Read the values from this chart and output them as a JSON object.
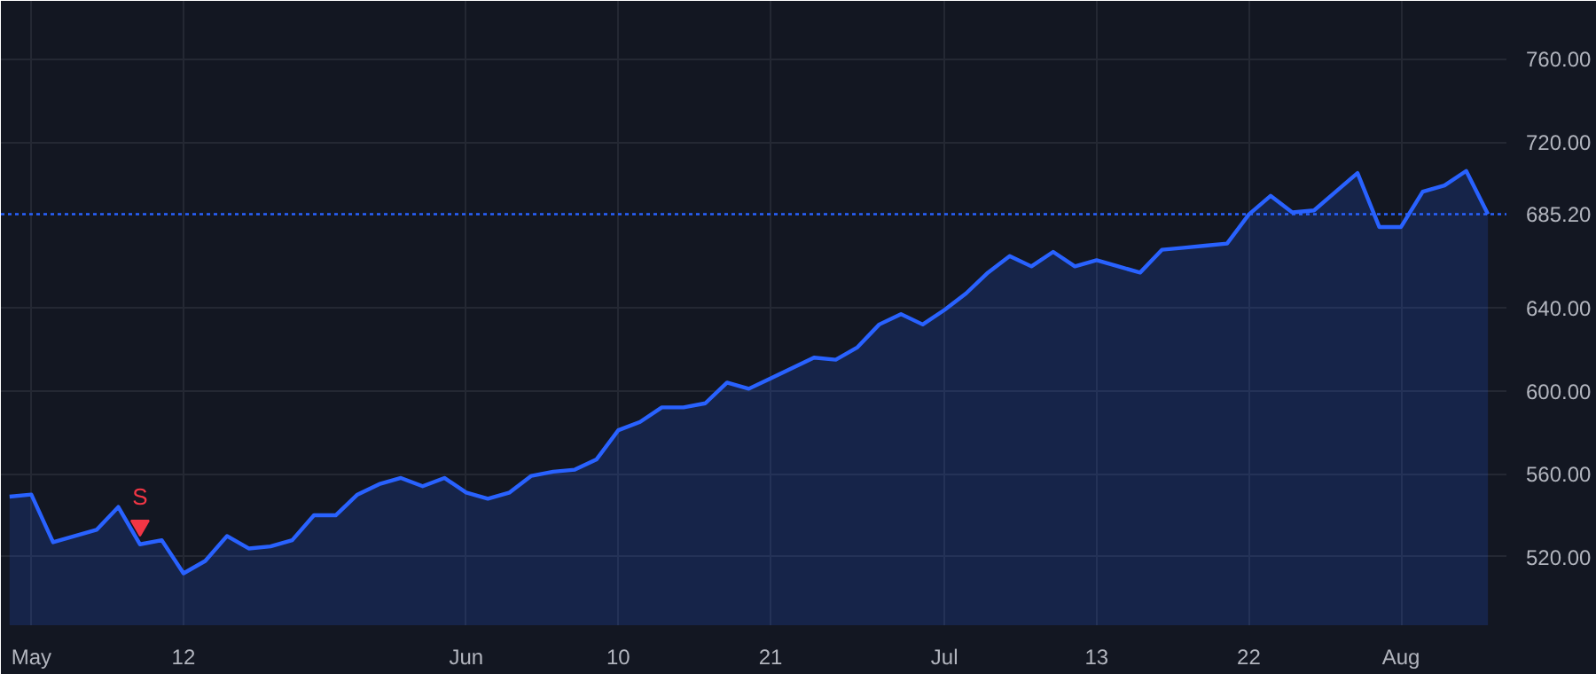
{
  "chart_data": {
    "type": "area",
    "categories": [
      null,
      "May",
      null,
      null,
      null,
      null,
      null,
      null,
      "12",
      null,
      null,
      null,
      null,
      null,
      null,
      null,
      null,
      null,
      null,
      null,
      null,
      "Jun",
      null,
      null,
      null,
      null,
      null,
      null,
      "10",
      null,
      null,
      null,
      null,
      null,
      null,
      "21",
      null,
      null,
      null,
      null,
      null,
      null,
      null,
      "Jul",
      null,
      null,
      null,
      null,
      null,
      null,
      "13",
      null,
      null,
      null,
      null,
      null,
      null,
      "22",
      null,
      null,
      null,
      null,
      null,
      null,
      "Aug",
      null,
      null,
      null,
      null
    ],
    "series": [
      {
        "color": "#2962ff",
        "values": [
          549,
          550,
          527,
          530,
          533,
          544,
          526,
          528,
          512,
          518,
          530,
          524,
          525,
          528,
          540,
          540,
          550,
          555,
          558,
          554,
          558,
          551,
          548,
          551,
          559,
          561,
          562,
          567,
          581,
          585,
          592,
          592,
          594,
          604,
          601,
          606,
          611,
          616,
          615,
          621,
          632,
          637,
          632,
          639,
          647,
          657,
          665,
          660,
          667,
          660,
          663,
          660,
          657,
          668,
          669,
          670,
          671,
          685,
          694,
          686,
          687,
          696,
          705,
          679,
          679,
          696,
          699,
          706,
          685.2
        ]
      },
      {
        "type": "scatter",
        "name": "S",
        "color": "#f23645",
        "marker": "triangle",
        "values": [
          null,
          null,
          null,
          null,
          null,
          null,
          535,
          null,
          null,
          null,
          null,
          null,
          null,
          null,
          null,
          null,
          null,
          null,
          null,
          null,
          null,
          null,
          null,
          null,
          null,
          null,
          null,
          null,
          null,
          null,
          null,
          null,
          null,
          null,
          null,
          null,
          null,
          null,
          null,
          null,
          null,
          null,
          null,
          null,
          null,
          null,
          null,
          null,
          null,
          null,
          null,
          null,
          null,
          null,
          null,
          null,
          null,
          null,
          null,
          null,
          null,
          null,
          null,
          null,
          null,
          null,
          null,
          null,
          null
        ]
      }
    ],
    "ylim": [
      487,
      788
    ],
    "yticks": [
      {
        "value": 520,
        "label": "520.00"
      },
      {
        "value": 560,
        "label": "560.00"
      },
      {
        "value": 600,
        "label": "600.00"
      },
      {
        "value": 640,
        "label": "640.00"
      },
      {
        "value": 720,
        "label": "720.00"
      },
      {
        "value": 760,
        "label": "760.00"
      }
    ],
    "grid": true,
    "ref_lines": [
      {
        "axis": "y",
        "value": 685.2,
        "label": "685.20",
        "color": "#2962ff",
        "line_style": "dotted"
      }
    ]
  }
}
